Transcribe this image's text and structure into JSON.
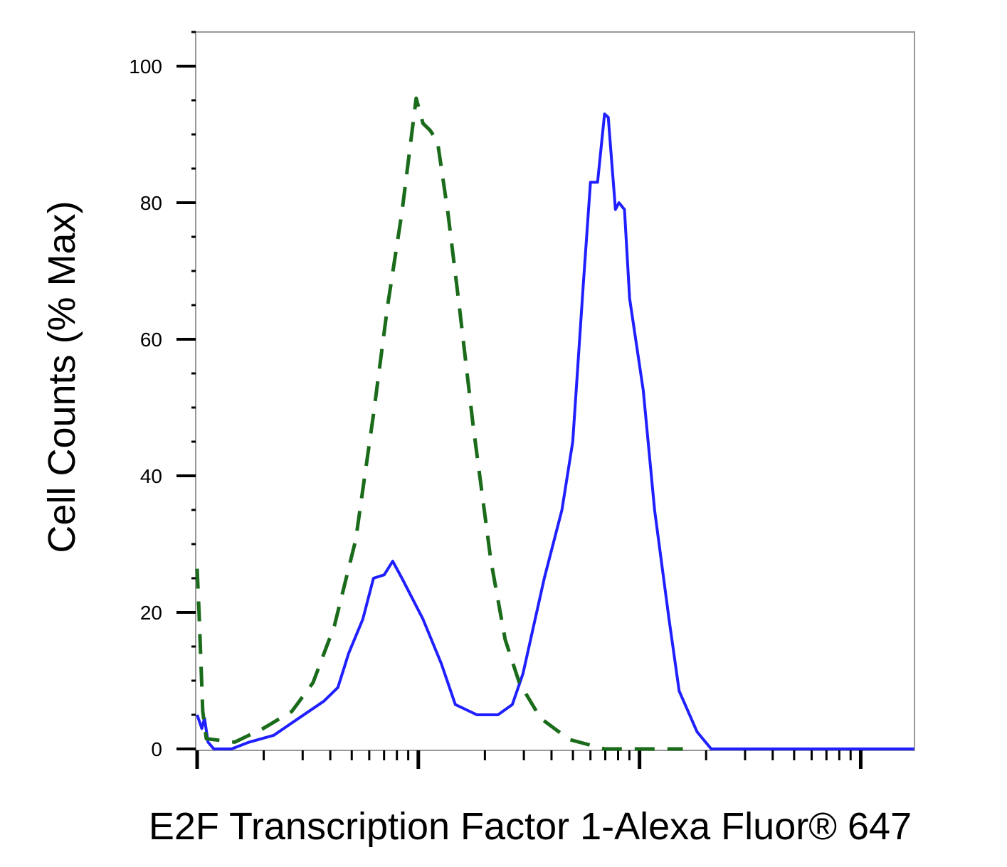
{
  "chart_data": {
    "type": "line",
    "xlabel": "E2F Transcription Factor 1-Alexa Fluor® 647",
    "ylabel": "Cell Counts (% Max)",
    "xscale": "log",
    "xlim": [
      1,
      1750
    ],
    "xticks": [
      1,
      10,
      100,
      1000
    ],
    "xminor_ticks": [
      2,
      3,
      4,
      5,
      6,
      7,
      8,
      9,
      20,
      30,
      40,
      50,
      60,
      70,
      80,
      90,
      200,
      300,
      400,
      500,
      600,
      700,
      800,
      900
    ],
    "ylim": [
      0,
      105
    ],
    "yticks": [
      0,
      20,
      40,
      60,
      80,
      100
    ],
    "yminor_ticks": [
      5,
      10,
      15,
      25,
      30,
      35,
      45,
      50,
      55,
      65,
      70,
      75,
      85,
      90,
      95,
      105
    ],
    "series": [
      {
        "color": "#1f1fff",
        "dash": false,
        "x": [
          1,
          1.05,
          1.08,
          1.12,
          1.19,
          1.43,
          1.72,
          2.22,
          2.88,
          3.74,
          4.33,
          4.84,
          5.61,
          6.27,
          7.01,
          7.66,
          8.43,
          10.5,
          12.7,
          14.7,
          18.4,
          22.9,
          26.6,
          29.7,
          37.1,
          44.6,
          49.9,
          55.7,
          60.0,
          64.6,
          69.5,
          72.2,
          77.8,
          80.7,
          85.5,
          90.2,
          104,
          117,
          136,
          151,
          182,
          211,
          1742
        ],
        "values": [
          5,
          3,
          4.5,
          1,
          0,
          0,
          1,
          2,
          4.5,
          7,
          9,
          14,
          19,
          25,
          25.5,
          27.5,
          25,
          19,
          12.5,
          6.5,
          5,
          5,
          6.5,
          11,
          25,
          35,
          45,
          68,
          83,
          83,
          93,
          92.5,
          79,
          80,
          79,
          66,
          52.5,
          35,
          19,
          8.5,
          2.5,
          0,
          0
        ]
      },
      {
        "color": "#1a6b1a",
        "dash": true,
        "x": [
          1,
          1.02,
          1.06,
          1.1,
          1.48,
          1.99,
          2.68,
          3.34,
          4.17,
          5.21,
          6.27,
          7.27,
          8.43,
          9.78,
          10.5,
          11.3,
          12.2,
          13.6,
          15.3,
          17.7,
          21.3,
          24.7,
          28.6,
          35.7,
          48.0,
          69.5,
          93.5,
          157
        ],
        "values": [
          26.4,
          20,
          5.5,
          1.5,
          1,
          3,
          5.5,
          9.7,
          18,
          30.6,
          49,
          65,
          78.6,
          95.3,
          91.6,
          90.6,
          89,
          78.6,
          65,
          47.3,
          27.5,
          16,
          9.7,
          4.5,
          1.4,
          0,
          0,
          0
        ]
      }
    ]
  }
}
